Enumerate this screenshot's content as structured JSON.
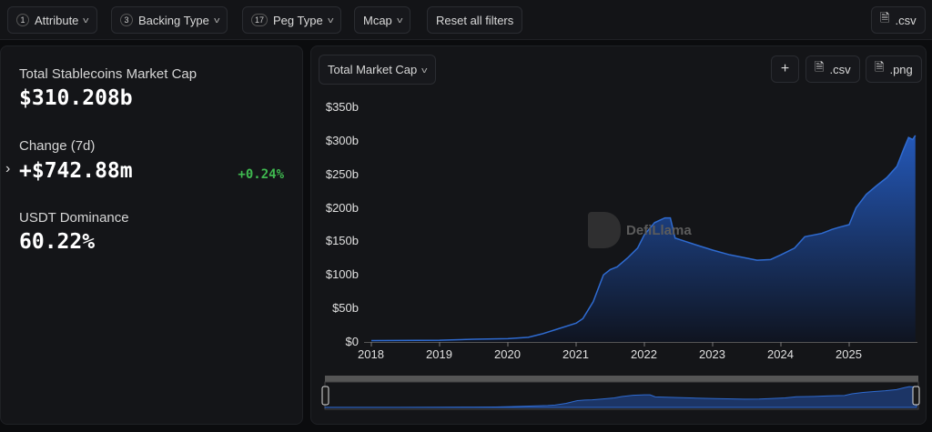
{
  "filters": {
    "attribute": {
      "count": "1",
      "label": "Attribute"
    },
    "backing": {
      "count": "3",
      "label": "Backing Type"
    },
    "peg": {
      "count": "17",
      "label": "Peg Type"
    },
    "mcap": {
      "label": "Mcap"
    },
    "reset": "Reset all filters",
    "csv": ".csv"
  },
  "stats": {
    "total_label": "Total Stablecoins Market Cap",
    "total_value": "$310.208b",
    "change_label": "Change (7d)",
    "change_value": "+$742.88m",
    "change_pct": "+0.24%",
    "dominance_label": "USDT Dominance",
    "dominance_value": "60.22%"
  },
  "chart_panel": {
    "selector": "Total Market Cap",
    "add": "+",
    "csv": ".csv",
    "png": ".png",
    "watermark": "DefiLlama"
  },
  "colors": {
    "accent": "#2f6bd1",
    "positive": "#3fb950"
  },
  "chart_data": {
    "type": "area",
    "ylabel": "",
    "xlabel": "",
    "ylim": [
      0,
      350
    ],
    "yticks": [
      "$0",
      "$50b",
      "$100b",
      "$150b",
      "$200b",
      "$250b",
      "$300b",
      "$350b"
    ],
    "xticks": [
      "2018",
      "2019",
      "2020",
      "2021",
      "2022",
      "2023",
      "2024",
      "2025"
    ],
    "x": [
      2018.0,
      2019.0,
      2019.5,
      2020.0,
      2020.3,
      2020.5,
      2020.75,
      2021.0,
      2021.1,
      2021.25,
      2021.4,
      2021.5,
      2021.6,
      2021.75,
      2021.9,
      2022.0,
      2022.15,
      2022.3,
      2022.38,
      2022.45,
      2022.6,
      2022.75,
      2023.0,
      2023.25,
      2023.5,
      2023.65,
      2023.85,
      2024.0,
      2024.2,
      2024.35,
      2024.6,
      2024.75,
      2024.85,
      2025.0,
      2025.1,
      2025.25,
      2025.4,
      2025.55,
      2025.7,
      2025.8,
      2025.87,
      2025.93,
      2025.97
    ],
    "values": [
      2,
      2.5,
      4,
      5,
      7,
      12,
      20,
      28,
      35,
      60,
      100,
      108,
      112,
      125,
      140,
      160,
      178,
      185,
      185,
      155,
      150,
      145,
      137,
      130,
      125,
      122,
      123,
      130,
      140,
      157,
      162,
      168,
      171,
      175,
      200,
      220,
      233,
      245,
      262,
      288,
      305,
      302,
      308
    ]
  }
}
